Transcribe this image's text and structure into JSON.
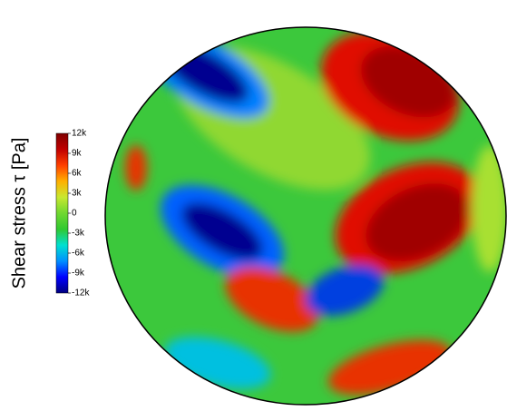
{
  "chart_data": {
    "type": "heatmap",
    "colorbar_label": "Shear stress τ [Pa]",
    "zlim": [
      -12000,
      12000
    ],
    "zticks": [
      {
        "value": 12000,
        "label": "12k"
      },
      {
        "value": 9000,
        "label": "9k"
      },
      {
        "value": 6000,
        "label": "6k"
      },
      {
        "value": 3000,
        "label": "3k"
      },
      0,
      {
        "value": -3000,
        "label": "-3k"
      },
      {
        "value": -6000,
        "label": "-6k"
      },
      {
        "value": -9000,
        "label": "-9k"
      },
      {
        "value": -12000,
        "label": "-12k"
      }
    ],
    "colors": [
      "#00007f",
      "#0000ff",
      "#0090ff",
      "#00e0d0",
      "#30c830",
      "#70d830",
      "#c8e830",
      "#ffb000",
      "#ff4000",
      "#c00000",
      "#7f0000"
    ]
  }
}
